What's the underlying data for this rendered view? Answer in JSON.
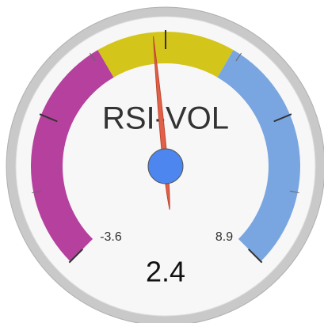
{
  "chart_data": {
    "type": "gauge",
    "title": "RSI-VOL",
    "min": -3.6,
    "max": 8.9,
    "value": 2.4,
    "bands": [
      {
        "from": -3.6,
        "to": 1.25,
        "color": "#b5409d"
      },
      {
        "from": 1.25,
        "to": 4.05,
        "color": "#d4c51b"
      },
      {
        "from": 4.05,
        "to": 8.9,
        "color": "#79a6e0"
      }
    ],
    "ticks": [
      -3.6,
      -0.475,
      2.65,
      5.775,
      8.9
    ],
    "minor_ticks": 2,
    "needle_color": "#e0604a",
    "hub_color": "#4d86ee"
  }
}
